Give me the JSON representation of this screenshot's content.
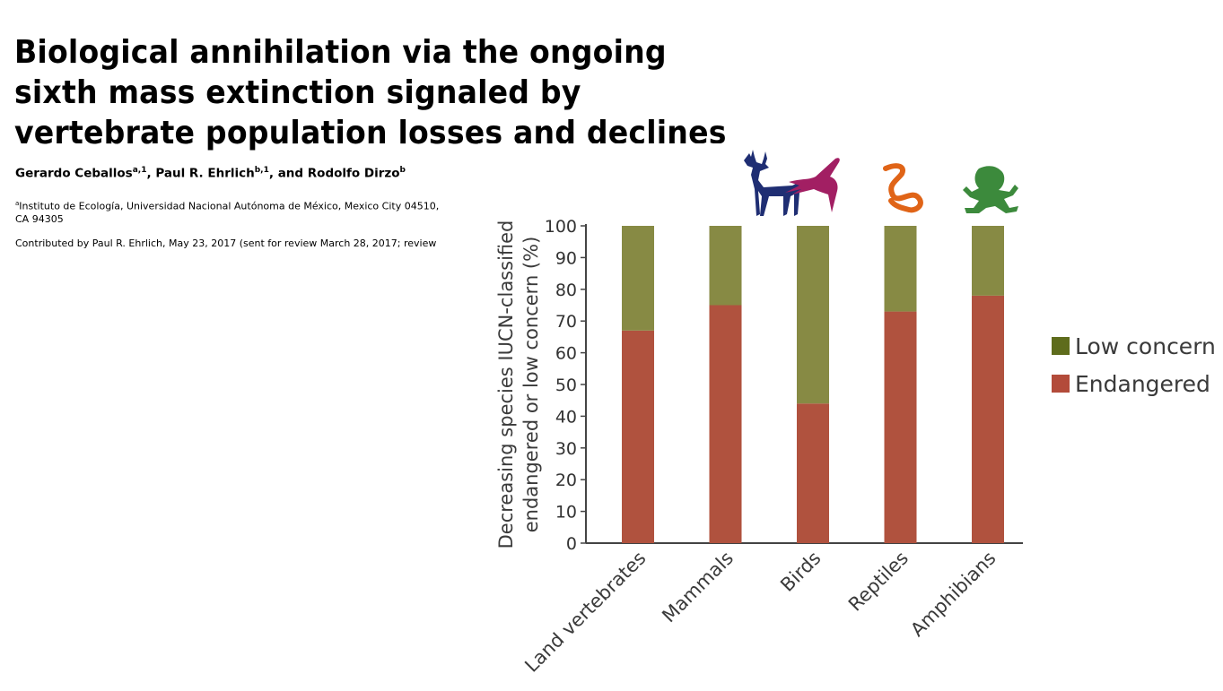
{
  "paper": {
    "title": "Biological annihilation via the ongoing sixth mass extinction signaled by vertebrate population losses and declines",
    "authors": [
      {
        "name": "Gerardo Ceballos",
        "sup": "a,1",
        "sep": ", "
      },
      {
        "name": "Paul R. Ehrlich",
        "sup": "b,1",
        "sep": ", and "
      },
      {
        "name": "Rodolfo Dirzo",
        "sup": "b",
        "sep": ""
      }
    ],
    "affiliation_mark": "a",
    "affiliation_text": "Instituto de Ecología, Universidad Nacional Autónoma de México, Mexico City 04510,",
    "affiliation_cont": "CA 94305",
    "contributed": "Contributed by Paul R. Ehrlich, May 23, 2017 (sent for review March 28, 2017; review"
  },
  "colors": {
    "endangered": "#b0523e",
    "low_concern": "#878a44",
    "legend_low_concern": "#5e6c1c",
    "legend_endangered": "#b34b3a",
    "mammal_icon": "#1f2e73",
    "bird_icon": "#a21f63",
    "reptile_icon": "#e06417",
    "amphibian_icon": "#3c8a3c"
  },
  "icons": [
    "deer-icon",
    "swallow-icon",
    "snake-icon",
    "frog-icon"
  ],
  "chart_data": {
    "type": "bar",
    "stacked": true,
    "categories": [
      "Land vertebrates",
      "Mammals",
      "Birds",
      "Reptiles",
      "Amphibians"
    ],
    "series": [
      {
        "name": "Endangered",
        "values": [
          67,
          75,
          44,
          73,
          78
        ]
      },
      {
        "name": "Low concern",
        "values": [
          33,
          25,
          56,
          27,
          22
        ]
      }
    ],
    "ylabel": "Decreasing species IUCN-classified endangered or low concern (%)",
    "ylabel_lines": [
      "Decreasing species IUCN-classified",
      "endangered or low concern (%)"
    ],
    "xlabel": "",
    "ylim": [
      0,
      100
    ],
    "yticks": [
      0,
      10,
      20,
      30,
      40,
      50,
      60,
      70,
      80,
      90,
      100
    ],
    "legend": {
      "position": "right",
      "entries": [
        "Low concern",
        "Endangered"
      ]
    },
    "grid": false
  }
}
